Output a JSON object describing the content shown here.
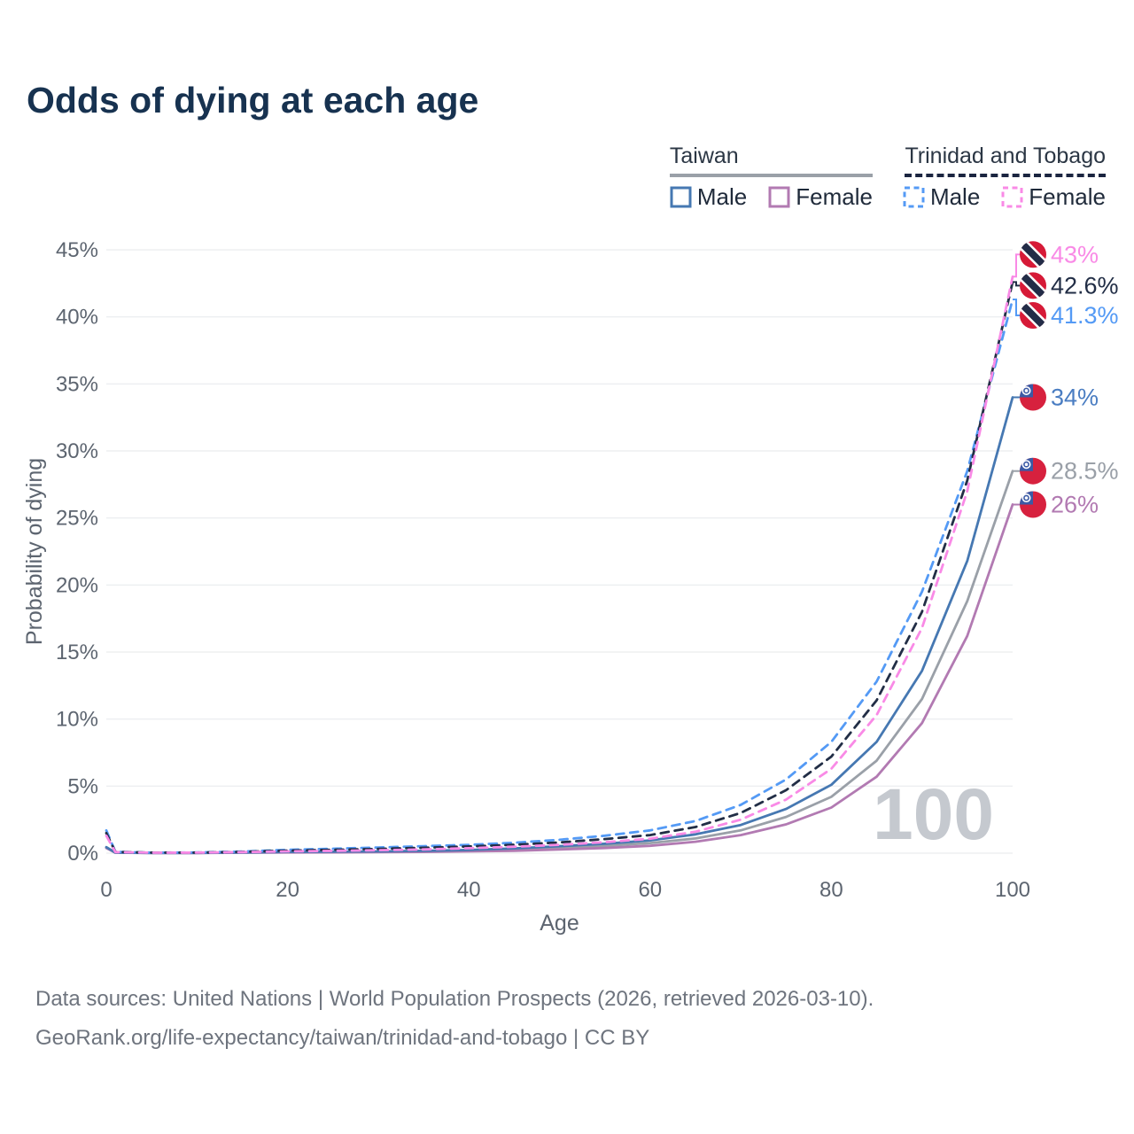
{
  "title": "Odds of dying at each age",
  "legend": {
    "groups": [
      {
        "country": "Taiwan",
        "line_style": "solid",
        "items": [
          {
            "label": "Male",
            "color": "#4678b2",
            "dash": "none"
          },
          {
            "label": "Female",
            "color": "#b27ab2",
            "dash": "none"
          }
        ]
      },
      {
        "country": "Trinidad and Tobago",
        "line_style": "dashed",
        "items": [
          {
            "label": "Male",
            "color": "#549af5",
            "dash": "6 4.5"
          },
          {
            "label": "Female",
            "color": "#f98ae6",
            "dash": "6 4.5"
          }
        ]
      }
    ]
  },
  "chart_data": {
    "type": "line",
    "title": "Odds of dying at each age",
    "xlabel": "Age",
    "ylabel": "Probability of dying",
    "xlim": [
      0,
      100
    ],
    "ylim": [
      0,
      45
    ],
    "grid": "horizontal",
    "legend_position": "top-right",
    "hover_age_watermark": "100",
    "x_ticks": [
      0,
      20,
      40,
      60,
      80,
      100
    ],
    "x_tick_labels": [
      "0",
      "20",
      "40",
      "60",
      "80",
      "100"
    ],
    "y_ticks": [
      0,
      5,
      10,
      15,
      20,
      25,
      30,
      35,
      40,
      45
    ],
    "y_tick_labels": [
      "0%",
      "5%",
      "10%",
      "15%",
      "20%",
      "25%",
      "30%",
      "35%",
      "40%",
      "45%"
    ],
    "x": [
      0,
      1,
      5,
      10,
      15,
      20,
      25,
      30,
      35,
      40,
      45,
      50,
      55,
      60,
      65,
      70,
      75,
      80,
      85,
      90,
      95,
      100
    ],
    "series": [
      {
        "id": "taiwan-both",
        "name": "Taiwan (both sexes)",
        "country": "Taiwan",
        "sex": "Both",
        "color": "#9aa0a8",
        "dashed": false,
        "end_label": "28.5%",
        "label_color": "#9aa0a8",
        "label_dy": 0,
        "flag": "taiwan",
        "values": [
          0.42,
          0.03,
          0.02,
          0.02,
          0.04,
          0.07,
          0.08,
          0.1,
          0.13,
          0.18,
          0.27,
          0.4,
          0.55,
          0.75,
          1.1,
          1.7,
          2.7,
          4.2,
          6.9,
          11.5,
          18.8,
          28.5
        ]
      },
      {
        "id": "taiwan-female",
        "name": "Taiwan Female",
        "country": "Taiwan",
        "sex": "Female",
        "color": "#b27ab2",
        "dashed": false,
        "end_label": "26%",
        "label_color": "#b27ab2",
        "label_dy": 0,
        "flag": "taiwan",
        "values": [
          0.38,
          0.03,
          0.01,
          0.01,
          0.03,
          0.05,
          0.06,
          0.07,
          0.09,
          0.13,
          0.18,
          0.27,
          0.38,
          0.55,
          0.85,
          1.35,
          2.15,
          3.4,
          5.7,
          9.7,
          16.2,
          26.0
        ]
      },
      {
        "id": "taiwan-male",
        "name": "Taiwan Male",
        "country": "Taiwan",
        "sex": "Male",
        "color": "#4678b2",
        "dashed": false,
        "end_label": "34%",
        "label_color": "#4a7dc2",
        "label_dy": 0,
        "flag": "taiwan",
        "values": [
          0.45,
          0.04,
          0.02,
          0.02,
          0.05,
          0.09,
          0.11,
          0.13,
          0.17,
          0.24,
          0.36,
          0.52,
          0.7,
          0.95,
          1.4,
          2.1,
          3.3,
          5.1,
          8.3,
          13.6,
          21.8,
          34.0
        ]
      },
      {
        "id": "trinidad-and-tobago-male",
        "name": "Trinidad and Tobago Male",
        "country": "Trinidad and Tobago",
        "sex": "Male",
        "color": "#549af5",
        "dashed": true,
        "end_label": "41.3%",
        "label_color": "#549af5",
        "label_dy": 18,
        "flag": "trinidad-and-tobago",
        "values": [
          1.7,
          0.1,
          0.04,
          0.05,
          0.12,
          0.25,
          0.33,
          0.42,
          0.52,
          0.62,
          0.78,
          1.0,
          1.3,
          1.7,
          2.4,
          3.6,
          5.5,
          8.3,
          12.8,
          19.5,
          28.5,
          41.3
        ]
      },
      {
        "id": "trinidad-and-tobago-both",
        "name": "Trinidad and Tobago (both sexes)",
        "country": "Trinidad and Tobago",
        "sex": "Both",
        "color": "#222e46",
        "dashed": true,
        "end_label": "42.6%",
        "label_color": "#222e46",
        "label_dy": 4,
        "flag": "trinidad-and-tobago",
        "values": [
          1.5,
          0.09,
          0.04,
          0.04,
          0.1,
          0.19,
          0.25,
          0.32,
          0.4,
          0.5,
          0.63,
          0.8,
          1.05,
          1.35,
          1.95,
          3.0,
          4.7,
          7.2,
          11.4,
          18.0,
          27.8,
          42.6
        ]
      },
      {
        "id": "trinidad-and-tobago-female",
        "name": "Trinidad and Tobago Female",
        "country": "Trinidad and Tobago",
        "sex": "Female",
        "color": "#f98ae6",
        "dashed": true,
        "end_label": "43%",
        "label_color": "#f98ae6",
        "label_dy": -25,
        "flag": "trinidad-and-tobago",
        "values": [
          1.3,
          0.08,
          0.03,
          0.04,
          0.08,
          0.13,
          0.17,
          0.22,
          0.28,
          0.37,
          0.48,
          0.62,
          0.82,
          1.08,
          1.6,
          2.5,
          4.0,
          6.3,
          10.3,
          16.8,
          27.0,
          43.0
        ]
      }
    ],
    "flag_colors": {
      "taiwan": {
        "red": "#d7213e",
        "canton": "#3b5aa5",
        "sun": "#ffffff"
      },
      "trinidad-and-tobago": {
        "red": "#d61a37",
        "band": "#232c47",
        "band_border": "#ffffff"
      }
    },
    "text_colors": {
      "axis": "#5d6570",
      "watermark": "#c5c9cf",
      "grid": "#edeff1"
    }
  },
  "footer": {
    "line1": "Data sources: United Nations | World Population Prospects (2026, retrieved 2026-03-10).",
    "line2": "GeoRank.org/life-expectancy/taiwan/trinidad-and-tobago | CC BY"
  }
}
